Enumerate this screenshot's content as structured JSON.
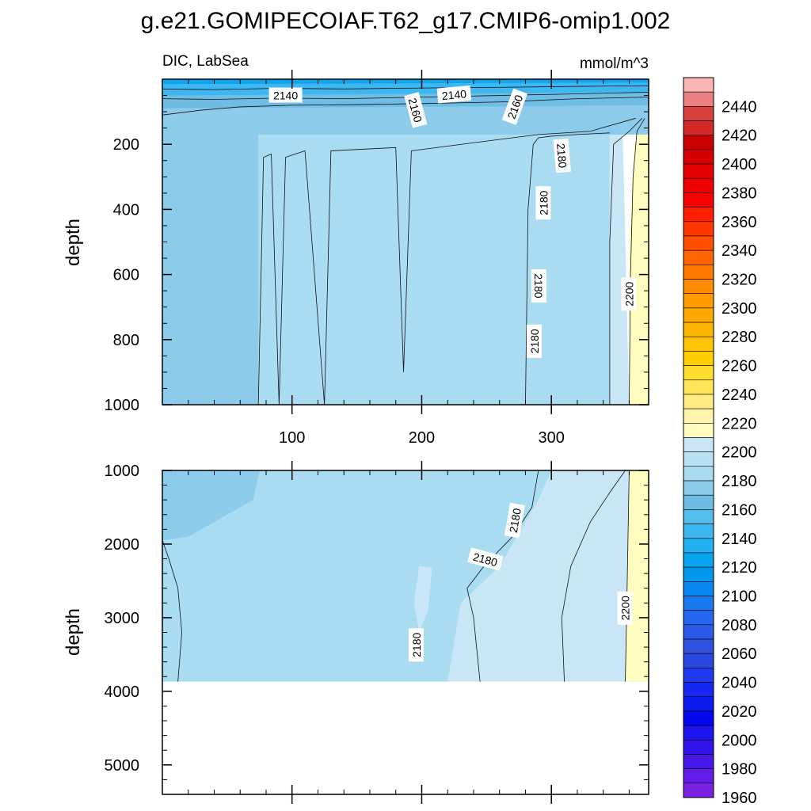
{
  "chart_data": {
    "type": "heatmap",
    "title": "g.e21.GOMIPECOIAF.T62_g17.CMIP6-omip1.002",
    "left_subtitle": "DIC, LabSea",
    "right_subtitle": "mmol/m^3",
    "xlim": [
      0,
      375
    ],
    "x_ticks": [
      100,
      200,
      300
    ],
    "x_tick_labels": [
      "100",
      "200",
      "300"
    ],
    "panels": [
      {
        "ylabel": "depth",
        "ylim": [
          0,
          1000
        ],
        "y_ticks": [
          200,
          400,
          600,
          800,
          1000
        ],
        "y_tick_labels": [
          "200",
          "400",
          "600",
          "800",
          "1000"
        ],
        "show_x_labels": true,
        "regions": [
          {
            "color": "#8dcbeb",
            "poly": [
              [
                0,
                160
              ],
              [
                85,
                160
              ],
              [
                85,
                1000
              ],
              [
                0,
                1000
              ]
            ]
          },
          {
            "color": "#a9dbf1",
            "poly": [
              [
                74,
                160
              ],
              [
                345,
                160
              ],
              [
                345,
                1000
              ],
              [
                74,
                1000
              ]
            ]
          },
          {
            "color": "#c8e6f5",
            "poly": [
              [
                345,
                160
              ],
              [
                355,
                160
              ],
              [
                360,
                1000
              ],
              [
                345,
                1000
              ]
            ]
          },
          {
            "color": "#fefcbf",
            "poly": [
              [
                372,
                120
              ],
              [
                375,
                120
              ],
              [
                375,
                1000
              ],
              [
                360,
                1000
              ],
              [
                360,
                500
              ],
              [
                364,
                200
              ]
            ]
          },
          {
            "color": "#8dcbeb",
            "poly": [
              [
                0,
                80
              ],
              [
                375,
                60
              ],
              [
                375,
                170
              ],
              [
                0,
                170
              ]
            ]
          },
          {
            "color": "#6fbde5",
            "poly": [
              [
                0,
                40
              ],
              [
                375,
                30
              ],
              [
                375,
                80
              ],
              [
                0,
                90
              ]
            ]
          },
          {
            "color": "#3eb6ef",
            "poly": [
              [
                0,
                0
              ],
              [
                375,
                0
              ],
              [
                375,
                40
              ],
              [
                0,
                50
              ]
            ]
          },
          {
            "color": "#0aa5ee",
            "poly": [
              [
                0,
                0
              ],
              [
                375,
                0
              ],
              [
                375,
                10
              ],
              [
                0,
                15
              ]
            ]
          }
        ],
        "contours": [
          {
            "level": 2140,
            "points": [
              [
                0,
                30
              ],
              [
                40,
                32
              ],
              [
                90,
                28
              ],
              [
                140,
                30
              ],
              [
                200,
                27
              ],
              [
                260,
                25
              ],
              [
                320,
                22
              ],
              [
                375,
                20
              ]
            ]
          },
          {
            "level": 2150,
            "points": [
              [
                0,
                60
              ],
              [
                40,
                62
              ],
              [
                90,
                58
              ],
              [
                140,
                60
              ],
              [
                200,
                55
              ],
              [
                260,
                50
              ],
              [
                320,
                45
              ],
              [
                375,
                40
              ]
            ]
          },
          {
            "level": 2160,
            "points": [
              [
                0,
                110
              ],
              [
                30,
                95
              ],
              [
                60,
                85
              ],
              [
                100,
                80
              ],
              [
                150,
                78
              ],
              [
                200,
                75
              ],
              [
                260,
                70
              ],
              [
                320,
                60
              ],
              [
                375,
                55
              ]
            ]
          },
          {
            "level": 2170,
            "points": [
              [
                74,
                1000
              ],
              [
                78,
                240
              ],
              [
                84,
                230
              ],
              [
                90,
                1000
              ],
              [
                95,
                240
              ],
              [
                110,
                220
              ],
              [
                125,
                1000
              ],
              [
                130,
                220
              ],
              [
                180,
                210
              ],
              [
                186,
                900
              ],
              [
                192,
                220
              ],
              [
                250,
                190
              ],
              [
                290,
                170
              ],
              [
                330,
                160
              ],
              [
                365,
                120
              ]
            ]
          },
          {
            "level": 2180,
            "points": [
              [
                280,
                1000
              ],
              [
                282,
                400
              ],
              [
                286,
                200
              ],
              [
                290,
                180
              ],
              [
                300,
                175
              ],
              [
                320,
                170
              ],
              [
                345,
                165
              ]
            ]
          },
          {
            "level": 2190,
            "points": [
              [
                345,
                1000
              ],
              [
                345,
                500
              ],
              [
                348,
                200
              ],
              [
                360,
                160
              ],
              [
                370,
                120
              ]
            ]
          },
          {
            "level": 2200,
            "points": [
              [
                360,
                1000
              ],
              [
                361,
                600
              ],
              [
                363,
                300
              ],
              [
                366,
                160
              ],
              [
                372,
                120
              ]
            ]
          }
        ],
        "contour_labels": [
          {
            "text": "2140",
            "x": 95,
            "y": 50,
            "rot": 0
          },
          {
            "text": "2160",
            "x": 195,
            "y": 95,
            "rot": 75
          },
          {
            "text": "2140",
            "x": 225,
            "y": 48,
            "rot": -5
          },
          {
            "text": "2160",
            "x": 272,
            "y": 85,
            "rot": -70
          },
          {
            "text": "2180",
            "x": 308,
            "y": 235,
            "rot": 85
          },
          {
            "text": "2180",
            "x": 294,
            "y": 380,
            "rot": -90
          },
          {
            "text": "2180",
            "x": 290,
            "y": 635,
            "rot": 90
          },
          {
            "text": "2180",
            "x": 287,
            "y": 805,
            "rot": -90
          },
          {
            "text": "2200",
            "x": 360,
            "y": 660,
            "rot": -90
          }
        ]
      },
      {
        "ylabel": "depth",
        "ylim": [
          1000,
          5400
        ],
        "y_ticks": [
          1000,
          2000,
          3000,
          4000,
          5000
        ],
        "y_tick_labels": [
          "1000",
          "2000",
          "3000",
          "4000",
          "5000"
        ],
        "show_x_labels": false,
        "data_floor": 3870,
        "regions": [
          {
            "color": "#a9dbf1",
            "poly": [
              [
                0,
                1000
              ],
              [
                375,
                1000
              ],
              [
                375,
                3870
              ],
              [
                0,
                3870
              ]
            ]
          },
          {
            "color": "#8dcbeb",
            "poly": [
              [
                0,
                1000
              ],
              [
                75,
                1000
              ],
              [
                70,
                1400
              ],
              [
                40,
                1700
              ],
              [
                20,
                1900
              ],
              [
                0,
                1950
              ]
            ]
          },
          {
            "color": "#c8e6f5",
            "poly": [
              [
                220,
                3870
              ],
              [
                230,
                2800
              ],
              [
                260,
                2300
              ],
              [
                290,
                1400
              ],
              [
                300,
                1000
              ],
              [
                360,
                1000
              ],
              [
                360,
                3870
              ]
            ]
          },
          {
            "color": "#fefcbf",
            "poly": [
              [
                360,
                1000
              ],
              [
                375,
                1000
              ],
              [
                375,
                3870
              ],
              [
                357,
                3870
              ],
              [
                358,
                3000
              ],
              [
                359,
                2000
              ]
            ]
          },
          {
            "color": "#c8e6f5",
            "poly": [
              [
                198,
                2300
              ],
              [
                208,
                2320
              ],
              [
                205,
                2900
              ],
              [
                198,
                3200
              ],
              [
                194,
                2800
              ]
            ]
          }
        ],
        "contours": [
          {
            "level": 2170,
            "points": [
              [
                0,
                1950
              ],
              [
                5,
                2200
              ],
              [
                12,
                2600
              ],
              [
                15,
                3200
              ],
              [
                12,
                3870
              ]
            ]
          },
          {
            "level": 2180,
            "points": [
              [
                245,
                3870
              ],
              [
                240,
                3000
              ],
              [
                235,
                2600
              ],
              [
                248,
                2300
              ],
              [
                270,
                1900
              ],
              [
                285,
                1500
              ],
              [
                290,
                1000
              ]
            ]
          },
          {
            "level": 2190,
            "points": [
              [
                310,
                3870
              ],
              [
                308,
                3000
              ],
              [
                315,
                2300
              ],
              [
                330,
                1700
              ],
              [
                345,
                1300
              ],
              [
                357,
                1000
              ]
            ]
          },
          {
            "level": 2200,
            "points": [
              [
                357,
                3870
              ],
              [
                358,
                3000
              ],
              [
                359,
                2000
              ],
              [
                360,
                1000
              ]
            ]
          }
        ],
        "contour_labels": [
          {
            "text": "2180",
            "x": 272,
            "y": 1680,
            "rot": -80
          },
          {
            "text": "2180",
            "x": 249,
            "y": 2210,
            "rot": 15
          },
          {
            "text": "2180",
            "x": 196,
            "y": 3370,
            "rot": -90
          },
          {
            "text": "2200",
            "x": 357,
            "y": 2870,
            "rot": -90
          }
        ]
      }
    ],
    "colorbar": {
      "labels": [
        "2440",
        "2420",
        "2400",
        "2380",
        "2360",
        "2340",
        "2320",
        "2300",
        "2280",
        "2260",
        "2240",
        "2220",
        "2200",
        "2180",
        "2160",
        "2140",
        "2120",
        "2100",
        "2080",
        "2060",
        "2040",
        "2020",
        "2000",
        "1980",
        "1960"
      ],
      "colors_top_to_bottom": [
        "#fcb5b5",
        "#ea8080",
        "#d94141",
        "#d52828",
        "#c80000",
        "#d70000",
        "#e30000",
        "#ee0000",
        "#fa0000",
        "#ff1e00",
        "#ff3600",
        "#ff4f00",
        "#ff6400",
        "#ff7800",
        "#ff8c00",
        "#ff9a00",
        "#ffa800",
        "#ffb600",
        "#ffc400",
        "#ffd000",
        "#ffdc2e",
        "#ffe458",
        "#ffec82",
        "#fff4ac",
        "#fefcbf",
        "#c8e6f5",
        "#b9e1f3",
        "#a9dbf1",
        "#8dcbeb",
        "#6fbde5",
        "#55bde9",
        "#3eb6ef",
        "#22b0f0",
        "#0aa5ee",
        "#0096ee",
        "#0a86f0",
        "#1878f0",
        "#2366f0",
        "#2b5ae8",
        "#3050dd",
        "#2848e0",
        "#1f3aee",
        "#1628f0",
        "#0c1af0",
        "#0508ee",
        "#1e14ec",
        "#3014ea",
        "#4818e8",
        "#641ce8",
        "#7a22e4"
      ]
    }
  }
}
